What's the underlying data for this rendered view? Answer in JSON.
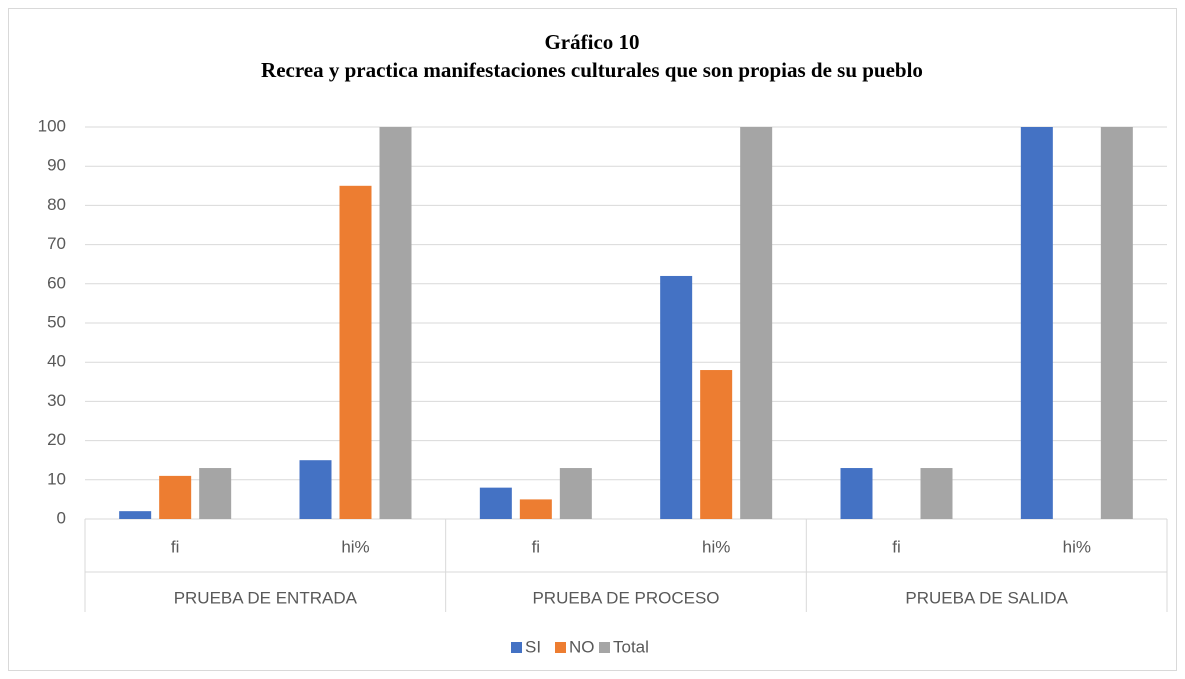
{
  "chart_data": {
    "type": "bar",
    "title": "Gráfico 10",
    "subtitle": "Recrea y practica manifestaciones culturales que son propias de su pueblo",
    "categories": [
      "fi",
      "hi%",
      "fi",
      "hi%",
      "fi",
      "hi%"
    ],
    "category_groups": [
      "PRUEBA DE ENTRADA",
      "PRUEBA DE PROCESO",
      "PRUEBA DE SALIDA"
    ],
    "series": [
      {
        "name": "SI",
        "color": "#4472c4",
        "values": [
          2,
          15,
          8,
          62,
          13,
          100
        ]
      },
      {
        "name": "NO",
        "color": "#ed7d31",
        "values": [
          11,
          85,
          5,
          38,
          0,
          0
        ]
      },
      {
        "name": "Total",
        "color": "#a5a5a5",
        "values": [
          13,
          100,
          13,
          100,
          13,
          100
        ]
      }
    ],
    "ylim": [
      0,
      100
    ],
    "yticks": [
      0,
      10,
      20,
      30,
      40,
      50,
      60,
      70,
      80,
      90,
      100
    ],
    "grid": true,
    "legend": "bottom"
  }
}
